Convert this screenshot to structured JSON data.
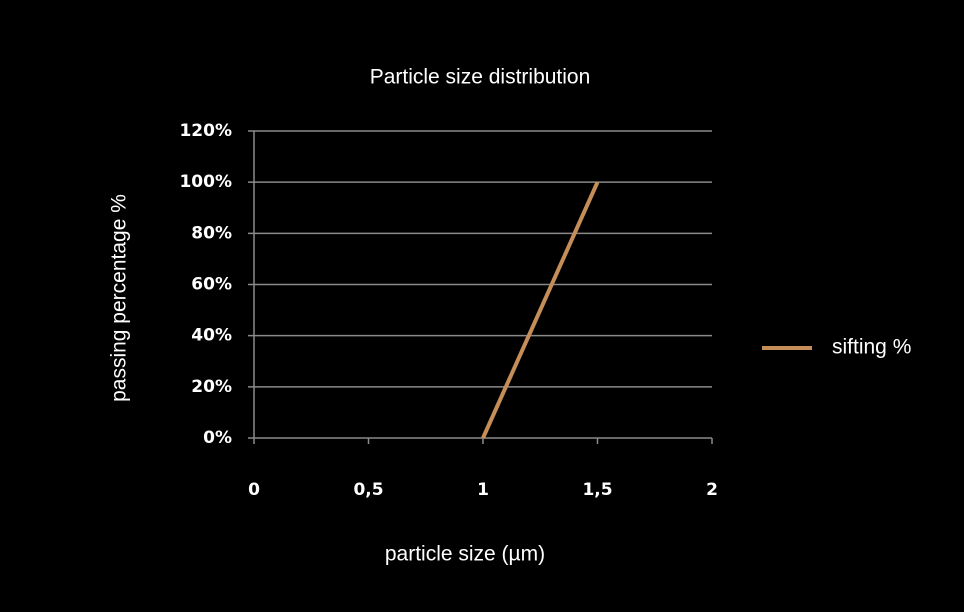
{
  "chart_data": {
    "type": "line",
    "title": "Particle size distribution",
    "x_label": "particle size (µm)",
    "y_label": "passing percentage  %",
    "x": [
      1,
      1.5
    ],
    "series": [
      {
        "name": "sifting %",
        "color": "#c58e58",
        "values": [
          0,
          100
        ]
      }
    ],
    "xlim": [
      0,
      2
    ],
    "xticks": [
      0,
      {
        "value": 0.5,
        "label": "0,5"
      },
      1,
      {
        "value": 1.5,
        "label": "1,5"
      },
      2
    ],
    "ylim": [
      0,
      120
    ],
    "yticks": [
      {
        "value": 0,
        "label": "0%"
      },
      {
        "value": 20,
        "label": "20%"
      },
      {
        "value": 40,
        "label": "40%"
      },
      {
        "value": 60,
        "label": "60%"
      },
      {
        "value": 80,
        "label": "80%"
      },
      {
        "value": 100,
        "label": "100%"
      },
      {
        "value": 120,
        "label": "120%"
      }
    ],
    "grid": true,
    "legend": "right"
  }
}
